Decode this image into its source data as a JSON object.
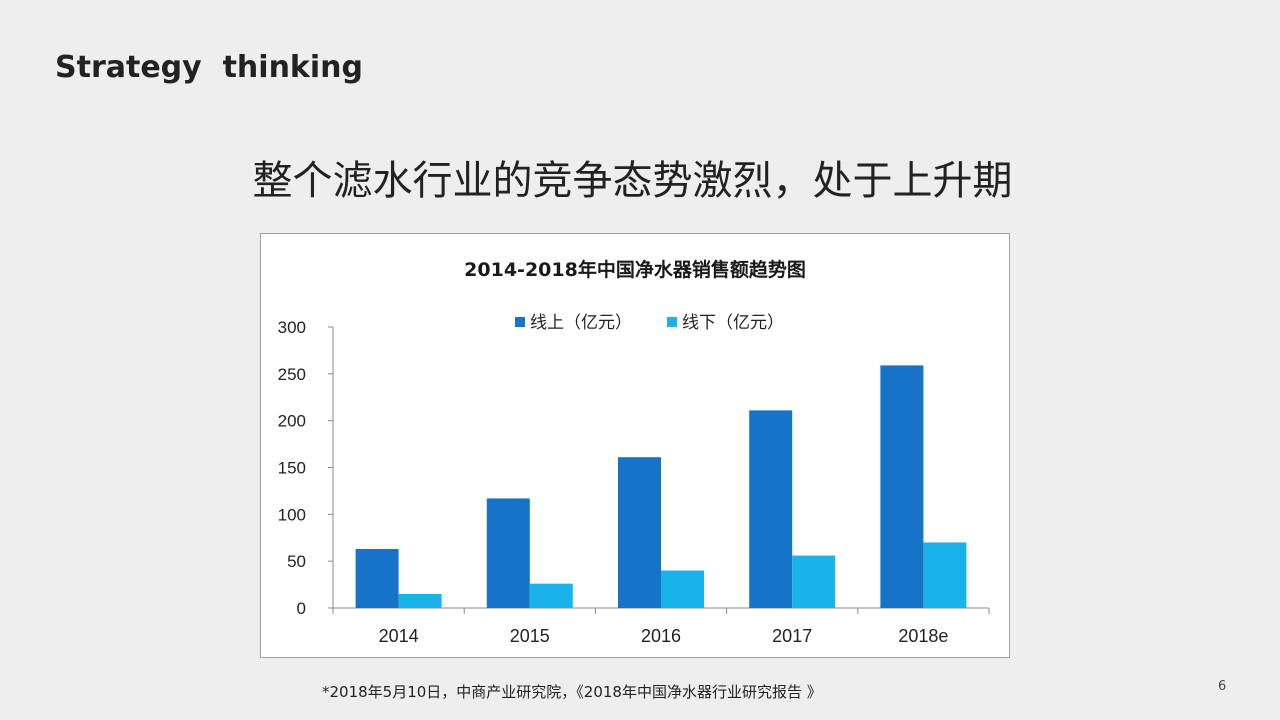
{
  "slide": {
    "heading": "Strategy  thinking",
    "title": "整个滤水行业的竞争态势激烈，处于上升期",
    "footnote": "*2018年5月10日，中商产业研究院，《2018年中国净水器行业研究报告 》",
    "page_number": "6"
  },
  "chart_data": {
    "type": "bar",
    "title": "2014-2018年中国净水器销售额趋势图",
    "categories": [
      "2014",
      "2015",
      "2016",
      "2017",
      "2018e"
    ],
    "series": [
      {
        "name": "线上（亿元）",
        "values": [
          63,
          117,
          161,
          211,
          259
        ],
        "color": "#1773c8"
      },
      {
        "name": "线下（亿元）",
        "values": [
          15,
          26,
          40,
          56,
          70
        ],
        "color": "#1ab2ea"
      }
    ],
    "ylim": [
      0,
      300
    ],
    "yticks": [
      0,
      50,
      100,
      150,
      200,
      250,
      300
    ],
    "xlabel": "",
    "ylabel": "",
    "grid": false,
    "legend_position": "top"
  }
}
